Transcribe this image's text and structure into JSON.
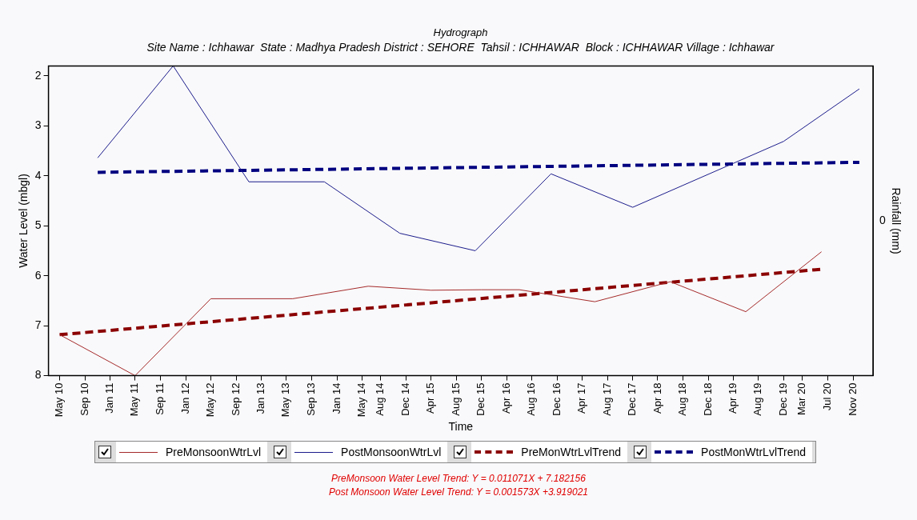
{
  "chart_data": {
    "type": "line",
    "title": "Hydrograph",
    "subtitle": "Site Name : Ichhawar  State : Madhya Pradesh District : SEHORE  Tahsil : ICHHAWAR  Block : ICHHAWAR Village : Ichhawar",
    "xlabel": "Time",
    "ylabel": "Water Level (mbgl)",
    "y2label": "Rainfall (mm)",
    "xlim": [
      "2010-03-08",
      "2021-02-05"
    ],
    "xticks": [
      {
        "value": "2010-05",
        "label": "May 10"
      },
      {
        "value": "2010-09",
        "label": "Sep 10"
      },
      {
        "value": "2011-01",
        "label": "Jan 11"
      },
      {
        "value": "2011-05",
        "label": "May 11"
      },
      {
        "value": "2011-09",
        "label": "Sep 11"
      },
      {
        "value": "2012-01",
        "label": "Jan 12"
      },
      {
        "value": "2012-05",
        "label": "May 12"
      },
      {
        "value": "2012-09",
        "label": "Sep 12"
      },
      {
        "value": "2013-01",
        "label": "Jan 13"
      },
      {
        "value": "2013-05",
        "label": "May 13"
      },
      {
        "value": "2013-09",
        "label": "Sep 13"
      },
      {
        "value": "2014-01",
        "label": "Jan 14"
      },
      {
        "value": "2014-05",
        "label": "May 14"
      },
      {
        "value": "2014-08",
        "label": "Aug 14"
      },
      {
        "value": "2014-12",
        "label": "Dec 14"
      },
      {
        "value": "2015-04",
        "label": "Apr 15"
      },
      {
        "value": "2015-08",
        "label": "Aug 15"
      },
      {
        "value": "2015-12",
        "label": "Dec 15"
      },
      {
        "value": "2016-04",
        "label": "Apr 16"
      },
      {
        "value": "2016-08",
        "label": "Aug 16"
      },
      {
        "value": "2016-12",
        "label": "Dec 16"
      },
      {
        "value": "2017-04",
        "label": "Apr 17"
      },
      {
        "value": "2017-08",
        "label": "Aug 17"
      },
      {
        "value": "2017-12",
        "label": "Dec 17"
      },
      {
        "value": "2018-04",
        "label": "Apr 18"
      },
      {
        "value": "2018-08",
        "label": "Aug 18"
      },
      {
        "value": "2018-12",
        "label": "Dec 18"
      },
      {
        "value": "2019-04",
        "label": "Apr 19"
      },
      {
        "value": "2019-08",
        "label": "Aug 19"
      },
      {
        "value": "2019-12",
        "label": "Dec 19"
      },
      {
        "value": "2020-03",
        "label": "Mar 20"
      },
      {
        "value": "2020-07",
        "label": "Jul 20"
      },
      {
        "value": "2020-11",
        "label": "Nov 20"
      }
    ],
    "ylim": [
      8,
      1.8
    ],
    "yticks": [
      2,
      3,
      4,
      5,
      6,
      7,
      8
    ],
    "grid": false,
    "legend": "bottom",
    "marker": "none",
    "series": [
      {
        "name": "PreMonsoonWtrLvl",
        "color": "#a52a2a",
        "line_style": "solid",
        "x": [
          "2010-05",
          "2011-05",
          "2012-05",
          "2013-06",
          "2014-06",
          "2015-04",
          "2015-12",
          "2016-06",
          "2017-06",
          "2018-06",
          "2019-06",
          "2020-06"
        ],
        "values": [
          7.18,
          8.0,
          6.46,
          6.46,
          6.21,
          6.29,
          6.28,
          6.28,
          6.52,
          6.12,
          6.72,
          5.52
        ]
      },
      {
        "name": "PostMonsoonWtrLvl",
        "color": "#1c1c8c",
        "line_style": "solid",
        "x": [
          "2010-11",
          "2011-11",
          "2012-11",
          "2013-11",
          "2014-11",
          "2015-11",
          "2016-11",
          "2017-12",
          "2019-12",
          "2020-12"
        ],
        "values": [
          3.64,
          1.8,
          4.12,
          4.12,
          5.15,
          5.5,
          3.96,
          4.63,
          3.31,
          2.26
        ]
      },
      {
        "name": "PreMonWtrLvlTrend",
        "color": "#8b0000",
        "line_style": "dashed",
        "x": [
          "2010-05",
          "2020-06"
        ],
        "values": [
          7.18,
          5.87
        ]
      },
      {
        "name": "PostMonWtrLvlTrend",
        "color": "#000080",
        "line_style": "dashed",
        "x": [
          "2010-11",
          "2020-12"
        ],
        "values": [
          3.93,
          3.73
        ]
      }
    ],
    "annotations": [
      {
        "text": "0"
      },
      "PreMonsoon Water Level Trend: Y = 0.011071X + 7.182156",
      "Post Monsoon Water Level Trend: Y = 0.001573X +3.919021"
    ]
  }
}
